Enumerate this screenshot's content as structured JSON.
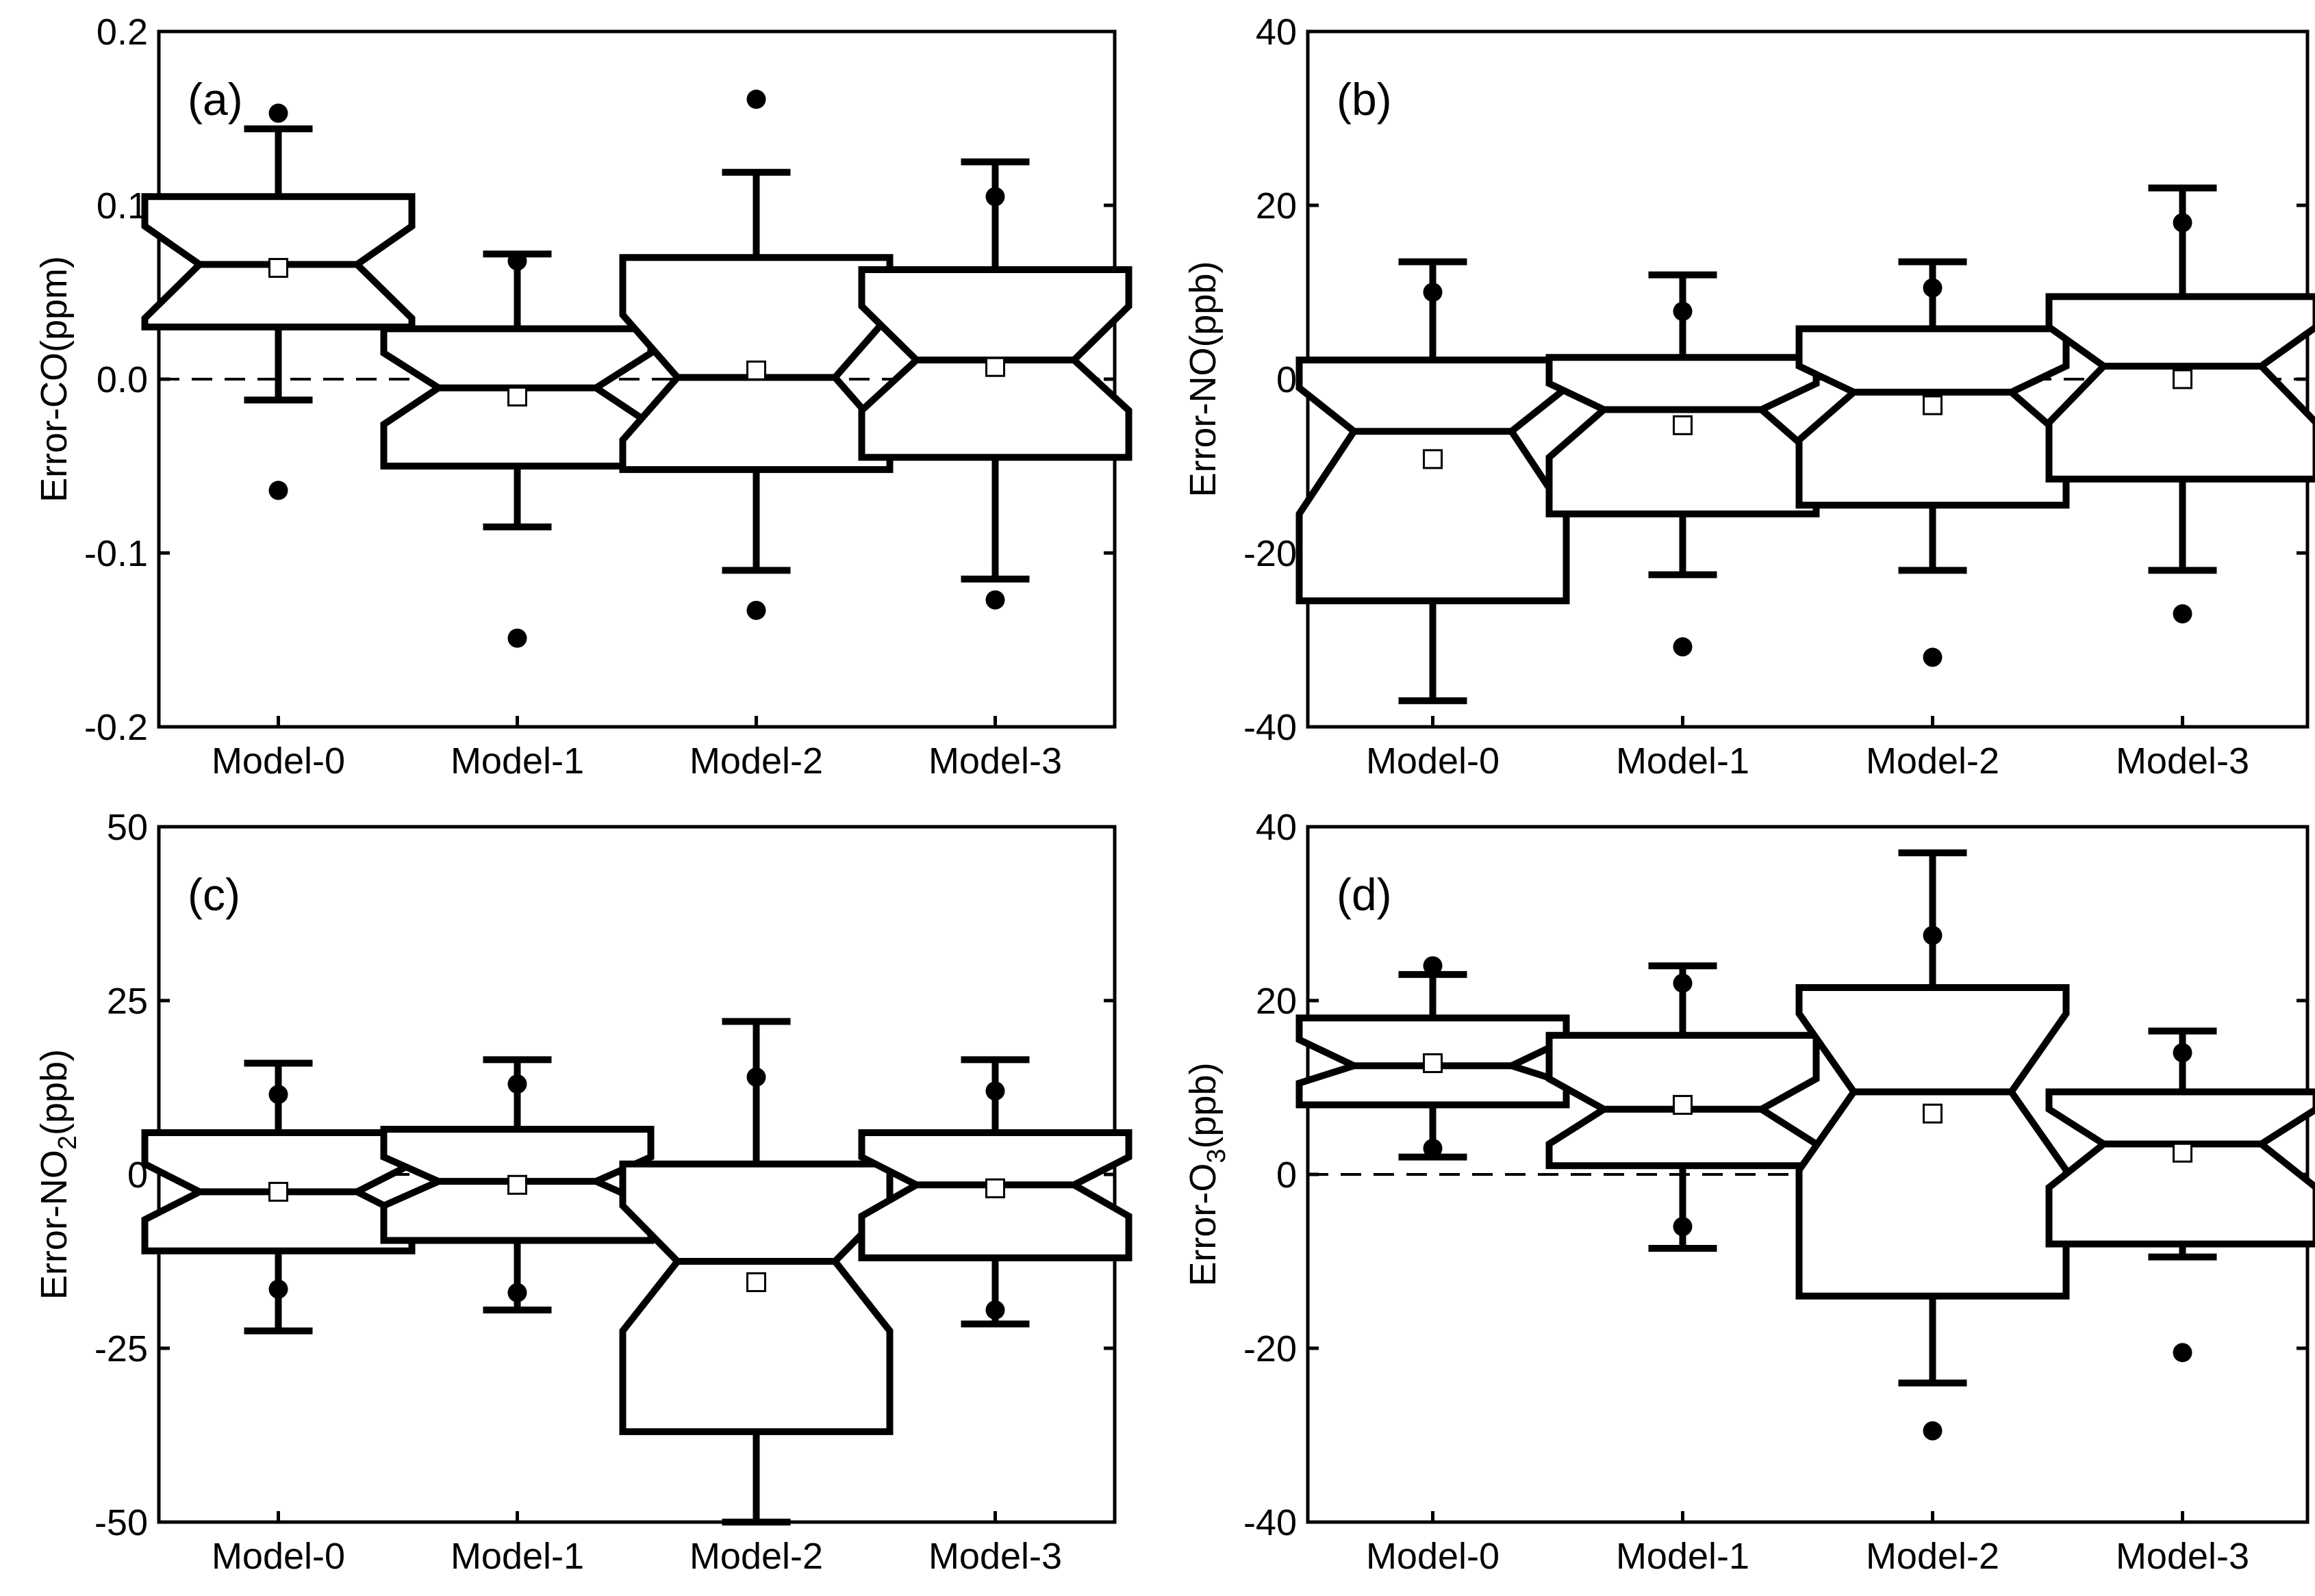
{
  "chart_data": [
    {
      "type": "box",
      "panel_label": "(a)",
      "ylabel": "Error-CO(ppm)",
      "ylabel_sub": "",
      "ylabel_suffix": "",
      "ylim": [
        -0.2,
        0.2
      ],
      "yticks": [
        -0.2,
        -0.1,
        0.0,
        0.1,
        0.2
      ],
      "ytick_labels": [
        "-0.2",
        "-0.1",
        "0.0",
        "0.1",
        "0.2"
      ],
      "reference_line": 0,
      "categories": [
        "Model-0",
        "Model-1",
        "Model-2",
        "Model-3"
      ],
      "boxes": [
        {
          "category": "Model-0",
          "q1": 0.03,
          "median": 0.066,
          "q3": 0.105,
          "notch_low": 0.035,
          "notch_high": 0.088,
          "whisker_low": -0.012,
          "whisker_high": 0.144,
          "mean": 0.064,
          "outliers": [
            0.153,
            -0.064
          ]
        },
        {
          "category": "Model-1",
          "q1": -0.05,
          "median": -0.005,
          "q3": 0.029,
          "notch_low": -0.026,
          "notch_high": 0.015,
          "whisker_low": -0.085,
          "whisker_high": 0.072,
          "mean": -0.01,
          "outliers": [
            0.068,
            -0.149
          ]
        },
        {
          "category": "Model-2",
          "q1": -0.052,
          "median": 0.001,
          "q3": 0.07,
          "notch_low": -0.035,
          "notch_high": 0.037,
          "whisker_low": -0.11,
          "whisker_high": 0.119,
          "mean": 0.005,
          "outliers": [
            0.161,
            -0.133
          ]
        },
        {
          "category": "Model-3",
          "q1": -0.045,
          "median": 0.011,
          "q3": 0.063,
          "notch_low": -0.018,
          "notch_high": 0.042,
          "whisker_low": -0.115,
          "whisker_high": 0.125,
          "mean": 0.007,
          "outliers": [
            0.105,
            -0.127
          ]
        }
      ]
    },
    {
      "type": "box",
      "panel_label": "(b)",
      "ylabel": "Error-NO(ppb)",
      "ylabel_sub": "",
      "ylabel_suffix": "",
      "ylim": [
        -40,
        40
      ],
      "yticks": [
        -40,
        -20,
        0,
        20,
        40
      ],
      "ytick_labels": [
        "-40",
        "-20",
        "0",
        "20",
        "40"
      ],
      "reference_line": 0,
      "categories": [
        "Model-0",
        "Model-1",
        "Model-2",
        "Model-3"
      ],
      "boxes": [
        {
          "category": "Model-0",
          "q1": -25.5,
          "median": -6.0,
          "q3": 2.2,
          "notch_low": -15.5,
          "notch_high": -1.0,
          "whisker_low": -37.0,
          "whisker_high": 13.5,
          "mean": -9.2,
          "outliers": [
            10.0
          ]
        },
        {
          "category": "Model-1",
          "q1": -15.5,
          "median": -3.5,
          "q3": 2.5,
          "notch_low": -9.0,
          "notch_high": -0.5,
          "whisker_low": -22.5,
          "whisker_high": 12.0,
          "mean": -5.3,
          "outliers": [
            7.8,
            -30.8
          ]
        },
        {
          "category": "Model-2",
          "q1": -14.5,
          "median": -1.5,
          "q3": 5.8,
          "notch_low": -7.0,
          "notch_high": 1.5,
          "whisker_low": -22.0,
          "whisker_high": 13.5,
          "mean": -3.0,
          "outliers": [
            10.5,
            -32.0
          ]
        },
        {
          "category": "Model-3",
          "q1": -11.5,
          "median": 1.5,
          "q3": 9.5,
          "notch_low": -5.0,
          "notch_high": 6.0,
          "whisker_low": -22.0,
          "whisker_high": 22.0,
          "mean": 0.0,
          "outliers": [
            18.0,
            -27.0
          ]
        }
      ]
    },
    {
      "type": "box",
      "panel_label": "(c)",
      "ylabel": "Error-NO",
      "ylabel_sub": "2",
      "ylabel_suffix": "(ppb)",
      "ylim": [
        -50,
        50
      ],
      "yticks": [
        -50,
        -25,
        0,
        25,
        50
      ],
      "ytick_labels": [
        "-50",
        "-25",
        "0",
        "25",
        "50"
      ],
      "reference_line": 0,
      "categories": [
        "Model-0",
        "Model-1",
        "Model-2",
        "Model-3"
      ],
      "boxes": [
        {
          "category": "Model-0",
          "q1": -11.0,
          "median": -2.5,
          "q3": 6.0,
          "notch_low": -6.5,
          "notch_high": 1.5,
          "whisker_low": -22.5,
          "whisker_high": 16.0,
          "mean": -2.5,
          "outliers": [
            11.5,
            -16.5
          ]
        },
        {
          "category": "Model-1",
          "q1": -9.5,
          "median": -1.0,
          "q3": 6.5,
          "notch_low": -4.5,
          "notch_high": 2.5,
          "whisker_low": -19.5,
          "whisker_high": 16.5,
          "mean": -1.5,
          "outliers": [
            13.0,
            -17.0
          ]
        },
        {
          "category": "Model-2",
          "q1": -37.0,
          "median": -12.5,
          "q3": 1.5,
          "notch_low": -22.5,
          "notch_high": -4.5,
          "whisker_low": -50.0,
          "whisker_high": 22.0,
          "mean": -15.5,
          "outliers": [
            14.0
          ]
        },
        {
          "category": "Model-3",
          "q1": -12.0,
          "median": -1.5,
          "q3": 6.0,
          "notch_low": -6.0,
          "notch_high": 2.5,
          "whisker_low": -21.5,
          "whisker_high": 16.5,
          "mean": -2.0,
          "outliers": [
            12.0,
            -19.5
          ]
        }
      ]
    },
    {
      "type": "box",
      "panel_label": "(d)",
      "ylabel": "Error-O",
      "ylabel_sub": "3",
      "ylabel_suffix": "(ppb)",
      "ylim": [
        -40,
        40
      ],
      "yticks": [
        -40,
        -20,
        0,
        20,
        40
      ],
      "ytick_labels": [
        "-40",
        "-20",
        "0",
        "20",
        "40"
      ],
      "reference_line": 0,
      "categories": [
        "Model-0",
        "Model-1",
        "Model-2",
        "Model-3"
      ],
      "boxes": [
        {
          "category": "Model-0",
          "q1": 8.0,
          "median": 12.5,
          "q3": 18.0,
          "notch_low": 10.5,
          "notch_high": 15.5,
          "whisker_low": 2.0,
          "whisker_high": 23.0,
          "mean": 12.8,
          "outliers": [
            24.0,
            3.0
          ]
        },
        {
          "category": "Model-1",
          "q1": 1.0,
          "median": 7.5,
          "q3": 16.0,
          "notch_low": 3.5,
          "notch_high": 11.0,
          "whisker_low": -8.5,
          "whisker_high": 24.0,
          "mean": 8.0,
          "outliers": [
            22.0,
            -6.0
          ]
        },
        {
          "category": "Model-2",
          "q1": -14.0,
          "median": 9.5,
          "q3": 21.5,
          "notch_low": 0.5,
          "notch_high": 18.5,
          "whisker_low": -24.0,
          "whisker_high": 37.0,
          "mean": 7.0,
          "outliers": [
            27.5,
            -29.5
          ]
        },
        {
          "category": "Model-3",
          "q1": -8.0,
          "median": 3.5,
          "q3": 9.5,
          "notch_low": -1.5,
          "notch_high": 7.5,
          "whisker_low": -9.5,
          "whisker_high": 16.5,
          "mean": 2.5,
          "outliers": [
            14.0,
            -20.5
          ]
        }
      ]
    }
  ]
}
